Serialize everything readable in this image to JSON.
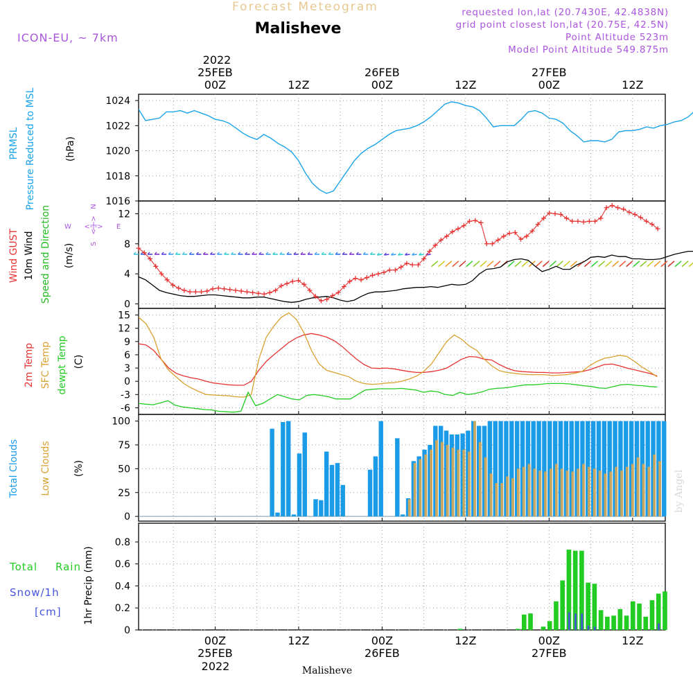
{
  "header": {
    "top_title": "Forecast Meteogram",
    "location": "Malisheve",
    "model": "ICON-EU, ~ 7km",
    "requested": "requested lon,lat (20.7430E, 42.4838N)",
    "gridpoint": "grid point closest lon,lat (20.75E, 42.5N)",
    "point_alt": "Point Altitude 523m",
    "model_alt": "Model Point Altitude 549.875m"
  },
  "footer": {
    "location": "Malisheve",
    "watermark": "by Angel"
  },
  "time_axis": {
    "top_year": "2022",
    "bottom_year": "2022",
    "ticks": [
      {
        "h": 24,
        "hour": "00Z",
        "date": "25FEB"
      },
      {
        "h": 36,
        "hour": "12Z",
        "date": ""
      },
      {
        "h": 48,
        "hour": "00Z",
        "date": "26FEB"
      },
      {
        "h": 60,
        "hour": "12Z",
        "date": ""
      },
      {
        "h": 72,
        "hour": "00Z",
        "date": "27FEB"
      },
      {
        "h": 84,
        "hour": "12Z",
        "date": ""
      }
    ]
  },
  "colors": {
    "pressure": "#1aa3e8",
    "gust": "#e83232",
    "wind": "#000000",
    "wind_label": "#22bb22",
    "t2m": "#e83232",
    "tsfc": "#daa030",
    "tdew": "#22cc22",
    "total_clouds": "#1a9be8",
    "low_clouds": "#c8a860",
    "rain": "#22cc22",
    "snow": "#4455dd",
    "header_purple": "#aa55dd",
    "header_gold": "#e8c890",
    "compass": "#aa55dd"
  },
  "chart_data": [
    {
      "type": "line",
      "panel": "pressure",
      "ylabels": [
        "PRMSL",
        "Pressure Reduced to MSL",
        "(hPa)"
      ],
      "ylim": [
        1016,
        1024.5
      ],
      "yticks": [
        1016,
        1018,
        1020,
        1022,
        1024
      ],
      "x_start_hour": 13,
      "series": [
        {
          "name": "PRMSL",
          "values": [
            1023.3,
            1022.4,
            1022.5,
            1022.6,
            1023.1,
            1023.1,
            1023.2,
            1023.0,
            1023.2,
            1023.0,
            1022.8,
            1022.5,
            1022.4,
            1022.2,
            1021.8,
            1021.4,
            1021.1,
            1020.9,
            1021.3,
            1021.0,
            1020.6,
            1020.3,
            1019.9,
            1019.2,
            1018.2,
            1017.4,
            1016.9,
            1016.6,
            1016.8,
            1017.6,
            1018.4,
            1019.2,
            1019.8,
            1020.2,
            1020.5,
            1020.9,
            1021.3,
            1021.6,
            1021.7,
            1021.8,
            1022.0,
            1022.3,
            1022.7,
            1023.2,
            1023.7,
            1023.9,
            1023.8,
            1023.6,
            1023.5,
            1023.2,
            1022.6,
            1021.9,
            1022.0,
            1022.0,
            1022.0,
            1022.5,
            1023.1,
            1023.2,
            1023.0,
            1022.6,
            1022.5,
            1022.2,
            1021.6,
            1021.2,
            1020.7,
            1020.8,
            1020.8,
            1020.7,
            1020.9,
            1021.5,
            1021.6,
            1021.6,
            1021.7,
            1021.9,
            1021.8,
            1022.0,
            1022.1,
            1022.3,
            1022.4,
            1022.7,
            1023.2,
            1023.8
          ]
        }
      ]
    },
    {
      "type": "line",
      "panel": "wind",
      "ylabels": [
        "Wind GUST",
        "10m Wind",
        "Speed and Direction",
        "(m/s)"
      ],
      "ylim": [
        -0.6,
        13.7
      ],
      "yticks": [
        0,
        4,
        8,
        12
      ],
      "compass": [
        "N",
        "E",
        "S",
        "W"
      ],
      "x_start_hour": 13,
      "series": [
        {
          "name": "Wind GUST",
          "values": [
            7.4,
            6.8,
            6.0,
            5.0,
            4.0,
            3.2,
            2.5,
            2.1,
            1.8,
            1.6,
            1.6,
            1.6,
            1.7,
            2.0,
            2.1,
            2.0,
            1.9,
            1.8,
            1.7,
            1.6,
            1.5,
            1.4,
            1.3,
            1.5,
            1.8,
            2.4,
            2.7,
            3.0,
            3.1,
            2.6,
            1.8,
            1.0,
            0.4,
            0.6,
            1.1,
            1.5,
            2.3,
            3.0,
            3.4,
            3.2,
            3.5,
            3.8,
            4.0,
            4.2,
            4.5,
            4.5,
            4.9,
            5.4,
            5.2,
            5.2,
            6.0,
            7.0,
            7.8,
            8.5,
            9.0,
            9.6,
            10.0,
            10.4,
            11.0,
            11.1,
            10.8,
            8.0,
            8.0,
            8.5,
            9.0,
            9.4,
            9.5,
            8.6,
            9.0,
            9.7,
            10.6,
            11.4,
            12.1,
            12.0,
            11.9,
            11.4,
            11.0,
            11.0,
            10.9,
            11.0,
            11.0,
            11.4,
            12.8,
            13.1,
            12.8,
            12.6,
            12.2,
            11.9,
            11.5,
            11.0,
            10.6,
            10.0
          ]
        },
        {
          "name": "10m Wind",
          "values": [
            3.6,
            3.2,
            2.5,
            1.8,
            1.5,
            1.3,
            1.1,
            1.0,
            1.0,
            1.1,
            1.2,
            1.2,
            1.1,
            1.0,
            0.9,
            0.8,
            0.8,
            0.9,
            0.9,
            0.7,
            0.5,
            0.3,
            0.2,
            0.3,
            0.6,
            0.8,
            0.9,
            1.0,
            0.8,
            0.5,
            0.3,
            0.5,
            1.0,
            1.4,
            1.6,
            1.6,
            1.7,
            1.8,
            2.0,
            2.1,
            2.2,
            2.2,
            2.3,
            2.2,
            2.4,
            2.6,
            2.5,
            2.6,
            3.1,
            4.0,
            4.6,
            4.7,
            4.9,
            5.6,
            5.9,
            6.0,
            5.8,
            5.0,
            4.3,
            4.6,
            5.0,
            4.6,
            4.6,
            5.2,
            5.6,
            6.2,
            6.3,
            6.2,
            6.5,
            6.3,
            6.3,
            6.0,
            6.0,
            5.9,
            5.9,
            6.0,
            6.3,
            6.6,
            6.8,
            7.0,
            7.0,
            6.8,
            6.7,
            6.5,
            6.3,
            6.2,
            6.0,
            5.8
          ]
        }
      ]
    },
    {
      "type": "line",
      "panel": "temperature",
      "ylabels": [
        "2m Temp",
        "SFC Temp",
        "dewpt Temp",
        "(C)"
      ],
      "ylim": [
        -7.5,
        16.5
      ],
      "yticks": [
        -6,
        -3,
        0,
        3,
        6,
        9,
        12,
        15
      ],
      "x_start_hour": 13,
      "series": [
        {
          "name": "2m Temp",
          "values": [
            8.5,
            8.2,
            7.0,
            5.0,
            3.0,
            1.8,
            1.2,
            0.8,
            0.5,
            0.0,
            -0.4,
            -0.6,
            -0.8,
            -0.9,
            -0.9,
            0.0,
            2.5,
            4.5,
            6.0,
            7.4,
            8.8,
            9.8,
            10.5,
            10.8,
            10.5,
            10.0,
            9.2,
            8.0,
            6.5,
            5.0,
            3.8,
            3.0,
            2.9,
            3.0,
            2.8,
            2.5,
            2.2,
            2.0,
            2.0,
            2.2,
            2.5,
            3.0,
            4.0,
            5.0,
            5.6,
            5.5,
            5.0,
            4.8,
            3.8,
            3.0,
            2.4,
            2.2,
            2.1,
            2.0,
            2.0,
            1.9,
            1.9,
            2.0,
            2.1,
            2.2,
            2.6,
            3.2,
            3.8,
            3.9,
            3.5,
            3.0,
            2.6,
            2.2,
            1.8,
            1.2
          ]
        },
        {
          "name": "SFC Temp",
          "values": [
            14.5,
            13.0,
            10.0,
            5.0,
            2.5,
            1.0,
            -0.5,
            -1.5,
            -2.3,
            -3.0,
            -3.1,
            -3.2,
            -3.3,
            -3.5,
            -3.6,
            -3.0,
            5.0,
            10.0,
            12.5,
            14.5,
            15.5,
            14.0,
            11.0,
            7.0,
            4.0,
            2.5,
            2.0,
            1.5,
            1.0,
            0.0,
            -0.5,
            -0.7,
            -0.6,
            -0.4,
            -0.3,
            0.0,
            0.5,
            1.2,
            2.3,
            4.0,
            6.5,
            9.0,
            10.5,
            9.5,
            8.0,
            7.0,
            5.0,
            3.5,
            2.4,
            2.0,
            1.8,
            1.6,
            1.5,
            1.5,
            1.5,
            1.3,
            1.4,
            1.5,
            1.8,
            2.2,
            3.5,
            4.5,
            5.2,
            5.5,
            5.9,
            5.6,
            4.5,
            3.2,
            2.2,
            1.0
          ]
        },
        {
          "name": "dewpt Temp",
          "values": [
            -5.0,
            -5.2,
            -5.3,
            -4.9,
            -4.4,
            -5.4,
            -5.8,
            -6.0,
            -6.2,
            -6.4,
            -6.5,
            -6.8,
            -6.9,
            -7.0,
            -6.8,
            -2.5,
            -5.5,
            -5.0,
            -4.0,
            -3.0,
            -3.5,
            -4.0,
            -4.2,
            -3.2,
            -3.0,
            -3.2,
            -3.5,
            -4.0,
            -4.0,
            -4.0,
            -3.0,
            -2.0,
            -1.8,
            -1.7,
            -1.7,
            -1.7,
            -1.6,
            -1.8,
            -2.0,
            -2.5,
            -2.2,
            -2.4,
            -3.0,
            -3.2,
            -2.5,
            -3.0,
            -2.8,
            -2.4,
            -1.8,
            -1.6,
            -1.5,
            -1.3,
            -1.0,
            -0.8,
            -0.8,
            -0.7,
            -0.5,
            -0.5,
            -0.5,
            -0.6,
            -0.8,
            -1.0,
            -1.2,
            -1.5,
            -1.6,
            -1.2,
            -0.8,
            -0.7,
            -0.9,
            -1.0,
            -1.2,
            -1.3
          ]
        }
      ]
    },
    {
      "type": "bar",
      "panel": "clouds",
      "ylabels": [
        "Total Clouds",
        "Low Clouds",
        "(%)"
      ],
      "ylim": [
        -5,
        107
      ],
      "yticks": [
        0,
        25,
        50,
        75,
        100
      ],
      "x_start_hour": 13,
      "series": [
        {
          "name": "Total Clouds",
          "values": [
            0,
            0,
            0,
            0,
            0,
            0,
            0,
            0,
            0,
            0,
            0,
            92,
            4,
            99,
            100,
            2,
            66,
            88,
            0,
            18,
            17,
            68,
            54,
            56,
            33,
            0,
            0,
            0,
            0,
            49,
            63,
            100,
            0,
            0,
            82,
            2,
            19,
            58,
            63,
            70,
            75,
            95,
            95,
            90,
            86,
            86,
            87,
            90,
            100,
            95,
            95,
            100,
            100,
            100,
            100,
            100,
            100,
            100,
            100,
            100,
            100,
            100,
            100,
            100,
            100,
            100,
            100,
            100,
            100,
            100,
            100,
            100,
            100,
            100,
            100,
            100,
            100,
            100,
            100,
            100,
            100,
            100,
            100,
            100,
            100,
            100,
            100,
            100,
            100
          ]
        },
        {
          "name": "Low Clouds",
          "values": [
            0,
            0,
            0,
            0,
            0,
            0,
            0,
            0,
            0,
            0,
            0,
            0,
            0,
            0,
            0,
            0,
            0,
            0,
            0,
            0,
            0,
            0,
            0,
            0,
            0,
            0,
            0,
            0,
            0,
            0,
            0,
            0,
            0,
            0,
            0,
            0,
            18,
            56,
            60,
            65,
            70,
            80,
            78,
            75,
            72,
            70,
            70,
            68,
            100,
            78,
            62,
            45,
            35,
            35,
            42,
            40,
            50,
            52,
            55,
            50,
            48,
            47,
            50,
            55,
            50,
            48,
            47,
            50,
            55,
            52,
            50,
            48,
            45,
            47,
            52,
            48,
            52,
            55,
            62,
            55,
            52,
            65,
            58,
            70,
            68,
            64
          ]
        }
      ]
    },
    {
      "type": "bar",
      "panel": "precip",
      "ylabels": [
        "Total",
        "Rain",
        "Snow/1h",
        "[cm]",
        "1hr Precip (mm)"
      ],
      "ylim": [
        0,
        0.97
      ],
      "yticks": [
        0,
        0.2,
        0.4,
        0.6,
        0.8
      ],
      "x_start_hour": 13,
      "series": [
        {
          "name": "Rain",
          "values": [
            0,
            0,
            0,
            0,
            0,
            0,
            0,
            0,
            0,
            0,
            0,
            0,
            0,
            0,
            0,
            0,
            0,
            0,
            0,
            0,
            0,
            0,
            0,
            0,
            0,
            0,
            0,
            0,
            0,
            0,
            0,
            0,
            0,
            0,
            0,
            0,
            0,
            0,
            0,
            0,
            0,
            0,
            0,
            0,
            0,
            0,
            0,
            0,
            0,
            0.01,
            0,
            0,
            0,
            0,
            0,
            0,
            0,
            0,
            0.01,
            0.14,
            0.15,
            0,
            0.03,
            0.08,
            0.26,
            0.45,
            0.73,
            0.72,
            0.72,
            0.43,
            0.42,
            0.18,
            0.12,
            0.13,
            0.19,
            0.13,
            0.26,
            0.24,
            0.12,
            0.27,
            0.33,
            0.35,
            0.29
          ]
        },
        {
          "name": "Snow/1h",
          "values": [
            0,
            0,
            0,
            0,
            0,
            0,
            0,
            0,
            0,
            0,
            0,
            0,
            0,
            0,
            0,
            0,
            0,
            0,
            0,
            0,
            0,
            0,
            0,
            0,
            0,
            0,
            0,
            0,
            0,
            0,
            0,
            0,
            0,
            0,
            0,
            0,
            0,
            0,
            0,
            0,
            0,
            0,
            0,
            0,
            0,
            0,
            0,
            0,
            0,
            0,
            0,
            0,
            0,
            0,
            0,
            0,
            0,
            0,
            0,
            0,
            0,
            0,
            0,
            0,
            0,
            0,
            0.16,
            0.15,
            0.15,
            0.04,
            0.03,
            0,
            0,
            0,
            0,
            0,
            0,
            0,
            0,
            0,
            0.06,
            0,
            0.2
          ]
        }
      ]
    }
  ]
}
